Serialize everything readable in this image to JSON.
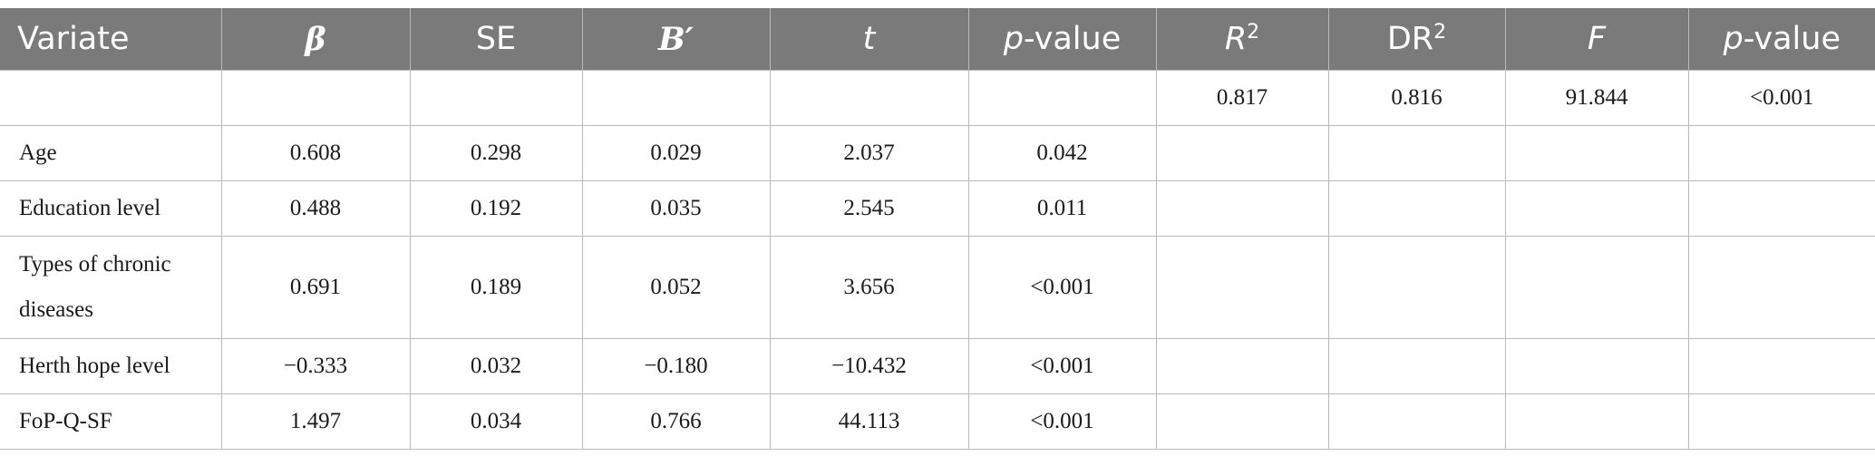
{
  "table": {
    "headers": {
      "variate": "Variate",
      "beta": "β",
      "se": "SE",
      "b_prime_letter": "B",
      "b_prime_mark": "′",
      "t": "t",
      "p_letter_1": "p",
      "p_rest_1": "-value",
      "r2_letter": "R",
      "r2_sup": "2",
      "dr2_letter": "DR",
      "dr2_sup": "2",
      "f": "F",
      "p_letter_2": "p",
      "p_rest_2": "-value"
    },
    "model_row": {
      "r2": "0.817",
      "dr2": "0.816",
      "f": "91.844",
      "p_value": "<0.001"
    },
    "rows": [
      {
        "variate": "Age",
        "beta": "0.608",
        "se": "0.298",
        "b_prime": "0.029",
        "t": "2.037",
        "p_value": "0.042"
      },
      {
        "variate": "Education level",
        "beta": "0.488",
        "se": "0.192",
        "b_prime": "0.035",
        "t": "2.545",
        "p_value": "0.011"
      },
      {
        "variate": "Types of chronic diseases",
        "beta": "0.691",
        "se": "0.189",
        "b_prime": "0.052",
        "t": "3.656",
        "p_value": "<0.001"
      },
      {
        "variate": "Herth hope level",
        "beta": "−0.333",
        "se": "0.032",
        "b_prime": "−0.180",
        "t": "−10.432",
        "p_value": "<0.001"
      },
      {
        "variate": "FoP-Q-SF",
        "beta": "1.497",
        "se": "0.034",
        "b_prime": "0.766",
        "t": "44.113",
        "p_value": "<0.001"
      }
    ]
  }
}
